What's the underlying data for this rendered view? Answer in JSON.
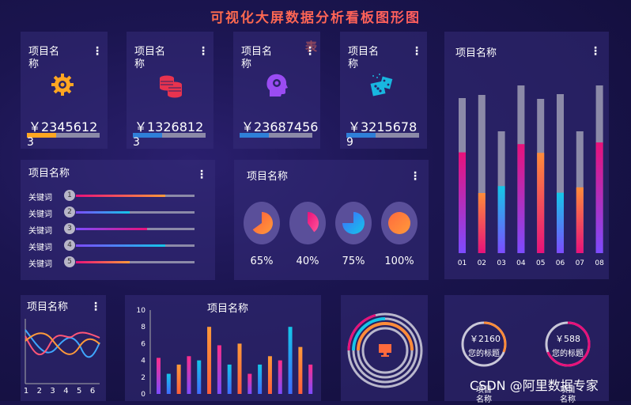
{
  "page_title": "可视化大屏数据分析看板图形图",
  "stray_char": "表",
  "menu_glyph": "⋮",
  "cards": [
    {
      "title": "项目名称",
      "value": "￥2345612",
      "index": "3",
      "icon": "gear-icon",
      "progress": 0.3
    },
    {
      "title": "项目名称",
      "value": "￥1326812",
      "index": "3",
      "icon": "coins-icon",
      "progress": 0.3
    },
    {
      "title": "项目名称",
      "value": "￥23687456",
      "index": "",
      "icon": "brain-head-icon",
      "progress": 0.3
    },
    {
      "title": "项目名称",
      "value": "￥3215678",
      "index": "9",
      "icon": "dice-icon",
      "progress": 0.3
    }
  ],
  "keywords_panel": {
    "title": "项目名称",
    "items": [
      {
        "label": "关键词",
        "num": "1",
        "value": 0.75
      },
      {
        "label": "关键词",
        "num": "2",
        "value": 0.45
      },
      {
        "label": "关键词",
        "num": "3",
        "value": 0.6
      },
      {
        "label": "关键词",
        "num": "4",
        "value": 0.75
      },
      {
        "label": "关键词",
        "num": "5",
        "value": 0.45
      }
    ]
  },
  "pie_panel": {
    "title": "项目名称",
    "pies": [
      {
        "label": "65%",
        "value": 0.65
      },
      {
        "label": "40%",
        "value": 0.4
      },
      {
        "label": "75%",
        "value": 0.75
      },
      {
        "label": "100%",
        "value": 1.0
      }
    ]
  },
  "bars_panel": {
    "title": "项目名称",
    "categories": [
      "01",
      "02",
      "03",
      "04",
      "05",
      "06",
      "07",
      "08"
    ],
    "values": [
      0.65,
      0.38,
      0.55,
      0.65,
      0.65,
      0.38,
      0.54,
      0.66
    ]
  },
  "line_panel": {
    "title": "项目名称",
    "x_ticks": [
      "1",
      "2",
      "3",
      "4",
      "5",
      "6"
    ]
  },
  "column_panel": {
    "title": "项目名称",
    "y_ticks": [
      "0",
      "2",
      "4",
      "6",
      "8",
      "10"
    ],
    "values": [
      4.3,
      2.4,
      3.5,
      4.5,
      4.0,
      8.0,
      5.8,
      3.5,
      6.0,
      2.4,
      3.5,
      4.5,
      4.0,
      8.0,
      5.6,
      3.5
    ]
  },
  "gauges": [
    {
      "value": "￥2160",
      "label": "您的标题",
      "below": "项目名称"
    },
    {
      "value": "￥588",
      "label": "您的标题",
      "below": "项目名称"
    }
  ],
  "watermark": "CSDN @阿里数据专家",
  "colors": {
    "orange": "#ff8c3a",
    "pink": "#e8117a",
    "cyan": "#14c7e8",
    "purple": "#7d4bff",
    "track": "#8c8aa8"
  }
}
